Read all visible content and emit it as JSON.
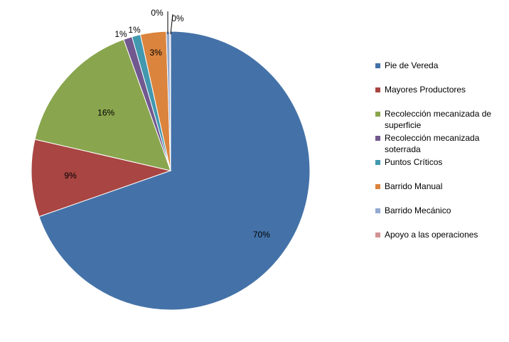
{
  "chart_data": {
    "type": "pie",
    "title": "",
    "legend_position": "right",
    "slices": [
      {
        "name": "Pie de Vereda",
        "value": 70,
        "label": "70%",
        "color": "#4472A8"
      },
      {
        "name": "Mayores Productores",
        "value": 9,
        "label": "9%",
        "color": "#A94542"
      },
      {
        "name": "Recolección mecanizada de superficie",
        "value": 16,
        "label": "16%",
        "color": "#89A54E"
      },
      {
        "name": "Recolección mecanizada soterrada",
        "value": 1,
        "label": "1%",
        "color": "#71588F"
      },
      {
        "name": "Puntos Críticos",
        "value": 1,
        "label": "1%",
        "color": "#4198AF"
      },
      {
        "name": "Barrido Manual",
        "value": 3,
        "label": "3%",
        "color": "#DB843D"
      },
      {
        "name": "Barrido Mecánico",
        "value": 0.4,
        "label": "0%",
        "color": "#93A9CF"
      },
      {
        "name": "Apoyo a las operaciones",
        "value": 0.1,
        "label": "0%",
        "color": "#D19392"
      }
    ]
  }
}
